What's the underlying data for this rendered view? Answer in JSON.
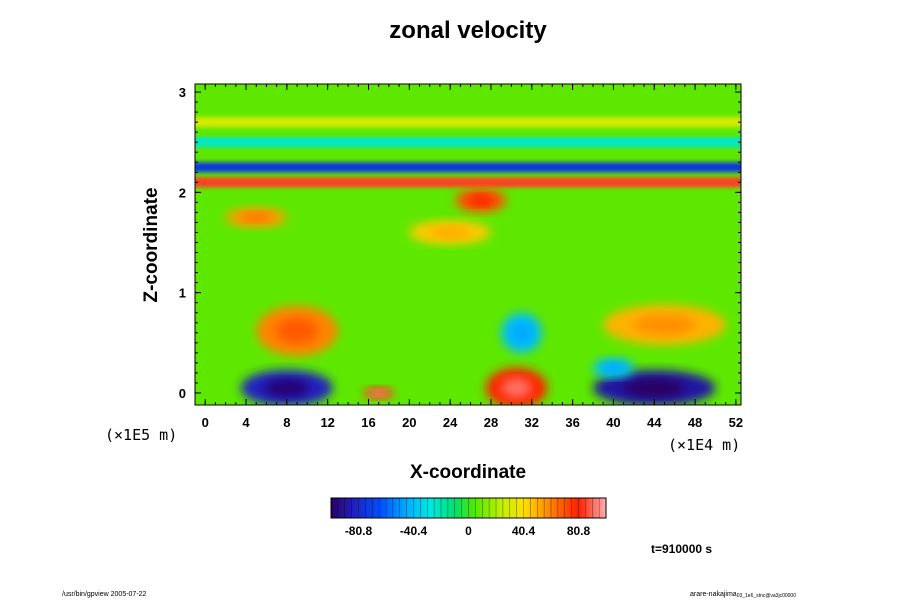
{
  "chart_data": {
    "type": "heatmap",
    "title": "zonal velocity",
    "xlabel": "X-coordinate",
    "ylabel": "Z-coordinate",
    "x_units": "(×1E4 m)",
    "y_units": "(×1E5 m)",
    "x_ticks": [
      "0",
      "4",
      "8",
      "12",
      "16",
      "20",
      "24",
      "28",
      "32",
      "36",
      "40",
      "44",
      "48",
      "52"
    ],
    "y_ticks": [
      "0",
      "1",
      "2",
      "3"
    ],
    "xlim": [
      -1,
      52.5
    ],
    "ylim": [
      -0.12,
      3.08
    ],
    "colorbar": {
      "ticks": [
        "-80.8",
        "-40.4",
        "0",
        "40.4",
        "80.8"
      ],
      "range": [
        -101,
        101
      ]
    },
    "time_label": "t=910000 s",
    "features": [
      {
        "x": 8,
        "z": 0.05,
        "rx": 4.5,
        "rz": 0.18,
        "value": -85
      },
      {
        "x": 44,
        "z": 0.05,
        "rx": 6,
        "rz": 0.18,
        "value": -90
      },
      {
        "x": 30.5,
        "z": 0.05,
        "rx": 3,
        "rz": 0.2,
        "value": 80
      },
      {
        "x": 17,
        "z": 0.0,
        "rx": 1.5,
        "rz": 0.06,
        "value": 85
      },
      {
        "x": 9,
        "z": 0.62,
        "rx": 4,
        "rz": 0.25,
        "value": 60
      },
      {
        "x": 45,
        "z": 0.68,
        "rx": 6,
        "rz": 0.2,
        "value": 50
      },
      {
        "x": 31,
        "z": 0.6,
        "rx": 2,
        "rz": 0.2,
        "value": -40
      },
      {
        "x": 40,
        "z": 0.25,
        "rx": 2,
        "rz": 0.1,
        "value": -40
      },
      {
        "x": 27,
        "z": 1.92,
        "rx": 2.5,
        "rz": 0.12,
        "value": 70
      },
      {
        "x": 5,
        "z": 1.75,
        "rx": 3,
        "rz": 0.1,
        "value": 55
      },
      {
        "x": 24,
        "z": 1.6,
        "rx": 4,
        "rz": 0.12,
        "value": 45
      }
    ],
    "bands": [
      {
        "z": 2.1,
        "value": 85
      },
      {
        "z": 2.25,
        "value": -75
      },
      {
        "z": 2.5,
        "value": -25
      },
      {
        "z": 2.7,
        "value": 30
      }
    ]
  },
  "footer": {
    "left": "/usr/bin/gpview 2005-07-22",
    "right": "arare-nakajima",
    "right_sub": "03_1e6_stnc@va3jc00000"
  }
}
